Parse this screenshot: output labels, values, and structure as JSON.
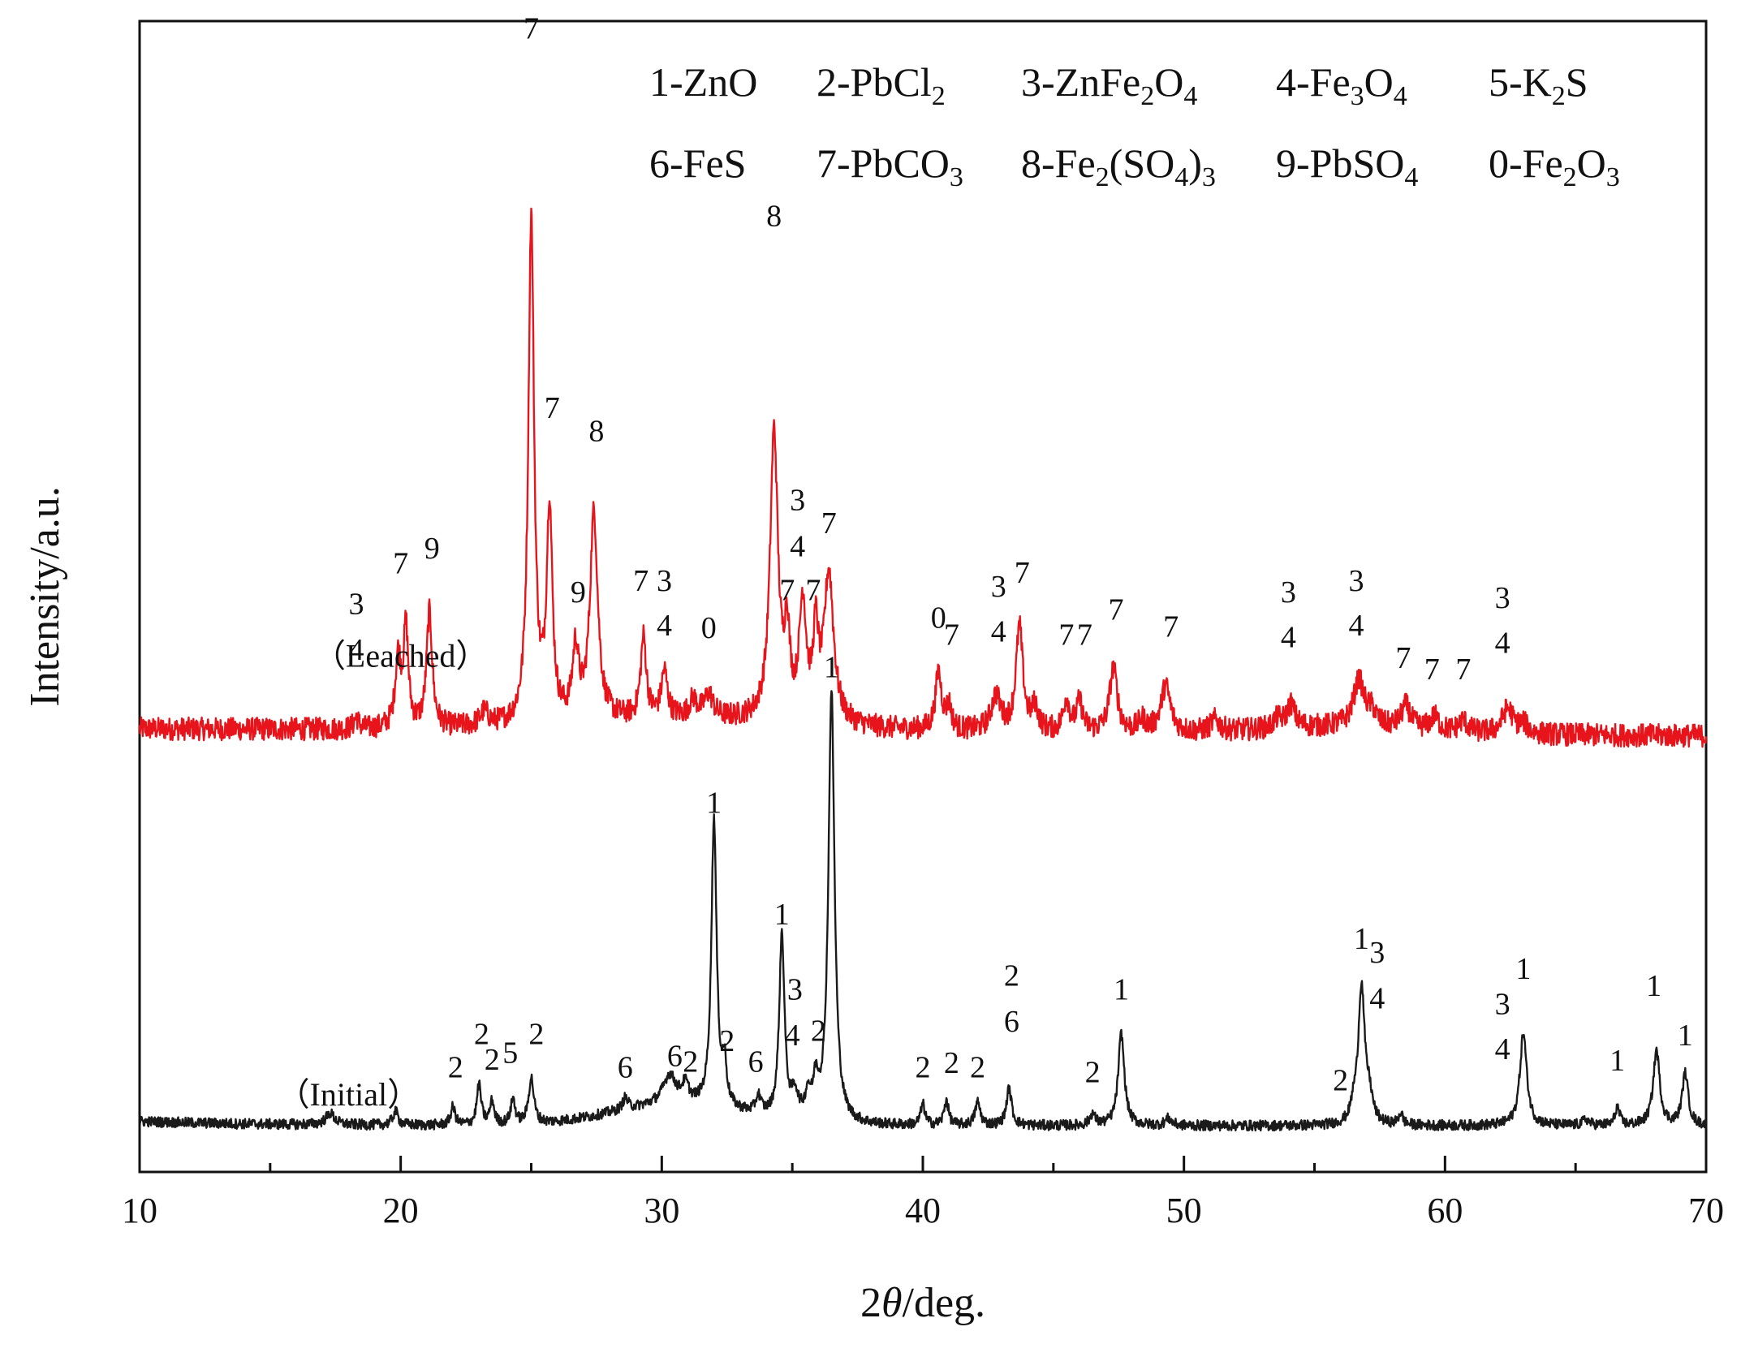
{
  "chart_data": {
    "type": "line",
    "xlabel": "2θ/deg.",
    "ylabel": "Intensity/a.u.",
    "xlim": [
      10,
      70
    ],
    "x_ticks": [
      10,
      20,
      30,
      40,
      50,
      60,
      70
    ],
    "grid": false,
    "legend_position": "top-right",
    "legend": [
      {
        "key": "1",
        "label": "ZnO",
        "parts": [
          [
            "1-ZnO",
            false
          ]
        ]
      },
      {
        "key": "2",
        "label": "PbCl2",
        "parts": [
          [
            "2-PbCl",
            false
          ],
          [
            "2",
            true
          ]
        ]
      },
      {
        "key": "3",
        "label": "ZnFe2O4",
        "parts": [
          [
            "3-ZnFe",
            false
          ],
          [
            "2",
            true
          ],
          [
            "O",
            false
          ],
          [
            "4",
            true
          ]
        ]
      },
      {
        "key": "4",
        "label": "Fe3O4",
        "parts": [
          [
            "4-Fe",
            false
          ],
          [
            "3",
            true
          ],
          [
            "O",
            false
          ],
          [
            "4",
            true
          ]
        ]
      },
      {
        "key": "5",
        "label": "K2S",
        "parts": [
          [
            "5-K",
            false
          ],
          [
            "2",
            true
          ],
          [
            "S",
            false
          ]
        ]
      },
      {
        "key": "6",
        "label": "FeS",
        "parts": [
          [
            "6-FeS",
            false
          ]
        ]
      },
      {
        "key": "7",
        "label": "PbCO3",
        "parts": [
          [
            "7-PbCO",
            false
          ],
          [
            "3",
            true
          ]
        ]
      },
      {
        "key": "8",
        "label": "Fe2(SO4)3",
        "parts": [
          [
            "8-Fe",
            false
          ],
          [
            "2",
            true
          ],
          [
            "(SO",
            false
          ],
          [
            "4",
            true
          ],
          [
            ")",
            false
          ],
          [
            "3",
            true
          ]
        ]
      },
      {
        "key": "9",
        "label": "PbSO4",
        "parts": [
          [
            "9-PbSO",
            false
          ],
          [
            "4",
            true
          ]
        ]
      },
      {
        "key": "0",
        "label": "Fe2O3",
        "parts": [
          [
            "0-Fe",
            false
          ],
          [
            "2",
            true
          ],
          [
            "O",
            false
          ],
          [
            "3",
            true
          ]
        ]
      }
    ],
    "series": [
      {
        "name": "（Leached）",
        "color": "#e8141b",
        "baseline": 0.385,
        "noise": 0.01,
        "peaks": [
          [
            18.3,
            0.01,
            0.1
          ],
          [
            19.9,
            0.06,
            0.13
          ],
          [
            20.2,
            0.085,
            0.11
          ],
          [
            21.1,
            0.1,
            0.13
          ],
          [
            23.2,
            0.012,
            0.2
          ],
          [
            25.0,
            0.44,
            0.13
          ],
          [
            25.7,
            0.185,
            0.13
          ],
          [
            26.7,
            0.06,
            0.14
          ],
          [
            27.4,
            0.18,
            0.18
          ],
          [
            29.3,
            0.07,
            0.13
          ],
          [
            30.1,
            0.04,
            0.14
          ],
          [
            31.2,
            0.015,
            0.18
          ],
          [
            31.8,
            0.02,
            0.2
          ],
          [
            34.3,
            0.25,
            0.18
          ],
          [
            34.8,
            0.07,
            0.12
          ],
          [
            35.4,
            0.1,
            0.16
          ],
          [
            35.9,
            0.07,
            0.12
          ],
          [
            36.4,
            0.13,
            0.22
          ],
          [
            40.6,
            0.05,
            0.14
          ],
          [
            41.0,
            0.02,
            0.12
          ],
          [
            42.8,
            0.03,
            0.22
          ],
          [
            43.7,
            0.09,
            0.16
          ],
          [
            44.3,
            0.02,
            0.14
          ],
          [
            45.5,
            0.028,
            0.14
          ],
          [
            46.0,
            0.025,
            0.14
          ],
          [
            47.3,
            0.055,
            0.18
          ],
          [
            48.4,
            0.01,
            0.16
          ],
          [
            49.3,
            0.04,
            0.22
          ],
          [
            51.2,
            0.01,
            0.2
          ],
          [
            53.6,
            0.008,
            0.2
          ],
          [
            54.1,
            0.02,
            0.18
          ],
          [
            56.7,
            0.04,
            0.25
          ],
          [
            57.2,
            0.012,
            0.2
          ],
          [
            58.5,
            0.02,
            0.22
          ],
          [
            59.6,
            0.012,
            0.2
          ],
          [
            60.7,
            0.01,
            0.2
          ],
          [
            62.4,
            0.022,
            0.25
          ],
          [
            63.0,
            0.008,
            0.2
          ]
        ],
        "labels": [
          [
            "3",
            18.3,
            0.485
          ],
          [
            "4",
            18.3,
            0.445
          ],
          [
            "7",
            20.0,
            0.52
          ],
          [
            "9",
            21.2,
            0.533
          ],
          [
            "7",
            25.0,
            0.985
          ],
          [
            "7",
            25.8,
            0.655
          ],
          [
            "9",
            26.8,
            0.495
          ],
          [
            "8",
            27.5,
            0.635
          ],
          [
            "7",
            29.2,
            0.505
          ],
          [
            "3",
            30.1,
            0.505
          ],
          [
            "4",
            30.1,
            0.466
          ],
          [
            "0",
            31.8,
            0.464
          ],
          [
            "8",
            34.3,
            0.822
          ],
          [
            "3",
            35.2,
            0.575
          ],
          [
            "4",
            35.2,
            0.535
          ],
          [
            "7",
            34.8,
            0.497
          ],
          [
            "7",
            35.8,
            0.497
          ],
          [
            "7",
            36.4,
            0.555
          ],
          [
            "0",
            40.6,
            0.473
          ],
          [
            "7",
            41.1,
            0.458
          ],
          [
            "3",
            42.9,
            0.5
          ],
          [
            "4",
            42.9,
            0.461
          ],
          [
            "7",
            43.8,
            0.512
          ],
          [
            "7",
            45.5,
            0.458
          ],
          [
            "7",
            46.2,
            0.458
          ],
          [
            "7",
            47.4,
            0.48
          ],
          [
            "7",
            49.5,
            0.465
          ],
          [
            "3",
            54.0,
            0.495
          ],
          [
            "4",
            54.0,
            0.456
          ],
          [
            "3",
            56.6,
            0.505
          ],
          [
            "4",
            56.6,
            0.466
          ],
          [
            "7",
            58.4,
            0.438
          ],
          [
            "7",
            59.5,
            0.428
          ],
          [
            "7",
            60.7,
            0.428
          ],
          [
            "3",
            62.2,
            0.49
          ],
          [
            "4",
            62.2,
            0.451
          ]
        ]
      },
      {
        "name": "（Initial）",
        "color": "#1a1a1a",
        "baseline": 0.04,
        "noise": 0.0045,
        "peaks": [
          [
            17.3,
            0.01,
            0.2
          ],
          [
            19.8,
            0.012,
            0.12
          ],
          [
            22.0,
            0.016,
            0.1
          ],
          [
            23.0,
            0.035,
            0.1
          ],
          [
            23.5,
            0.02,
            0.1
          ],
          [
            24.3,
            0.022,
            0.1
          ],
          [
            25.0,
            0.04,
            0.12
          ],
          [
            28.6,
            0.01,
            0.12
          ],
          [
            30.3,
            0.025,
            0.3
          ],
          [
            30.9,
            0.015,
            0.15
          ],
          [
            32.0,
            0.25,
            0.12
          ],
          [
            32.4,
            0.035,
            0.1
          ],
          [
            33.7,
            0.015,
            0.12
          ],
          [
            34.6,
            0.16,
            0.12
          ],
          [
            35.1,
            0.02,
            0.15
          ],
          [
            35.6,
            0.02,
            0.12
          ],
          [
            35.9,
            0.03,
            0.12
          ],
          [
            36.5,
            0.375,
            0.14
          ],
          [
            40.0,
            0.018,
            0.1
          ],
          [
            40.9,
            0.022,
            0.1
          ],
          [
            42.1,
            0.02,
            0.12
          ],
          [
            43.3,
            0.032,
            0.12
          ],
          [
            46.5,
            0.01,
            0.12
          ],
          [
            47.6,
            0.08,
            0.14
          ],
          [
            49.4,
            0.006,
            0.15
          ],
          [
            56.5,
            0.012,
            0.12
          ],
          [
            56.8,
            0.12,
            0.15
          ],
          [
            57.1,
            0.02,
            0.15
          ],
          [
            58.3,
            0.01,
            0.1
          ],
          [
            63.0,
            0.08,
            0.16
          ],
          [
            65.4,
            0.005,
            0.15
          ],
          [
            66.6,
            0.016,
            0.1
          ],
          [
            68.1,
            0.065,
            0.15
          ],
          [
            69.2,
            0.045,
            0.14
          ]
        ],
        "labels": [
          [
            "2",
            22.1,
            0.082
          ],
          [
            "2",
            23.1,
            0.111
          ],
          [
            "2",
            23.5,
            0.089
          ],
          [
            "5",
            24.2,
            0.095
          ],
          [
            "2",
            25.2,
            0.111
          ],
          [
            "6",
            28.6,
            0.082
          ],
          [
            "6",
            30.5,
            0.092
          ],
          [
            "2",
            31.1,
            0.087
          ],
          [
            "1",
            32.0,
            0.312
          ],
          [
            "2",
            32.5,
            0.105
          ],
          [
            "6",
            33.6,
            0.087
          ],
          [
            "1",
            34.6,
            0.215
          ],
          [
            "3",
            35.1,
            0.15
          ],
          [
            "4",
            35.0,
            0.11
          ],
          [
            "2",
            36.0,
            0.114
          ],
          [
            "1",
            36.5,
            0.43
          ],
          [
            "2",
            40.0,
            0.082
          ],
          [
            "2",
            41.1,
            0.086
          ],
          [
            "2",
            42.1,
            0.082
          ],
          [
            "2",
            43.4,
            0.162
          ],
          [
            "6",
            43.4,
            0.122
          ],
          [
            "2",
            46.5,
            0.078
          ],
          [
            "1",
            47.6,
            0.15
          ],
          [
            "2",
            56.0,
            0.071
          ],
          [
            "1",
            56.8,
            0.194
          ],
          [
            "3",
            57.4,
            0.182
          ],
          [
            "4",
            57.4,
            0.142
          ],
          [
            "3",
            62.2,
            0.137
          ],
          [
            "4",
            62.2,
            0.098
          ],
          [
            "1",
            63.0,
            0.168
          ],
          [
            "1",
            66.6,
            0.088
          ],
          [
            "1",
            68.0,
            0.153
          ],
          [
            "1",
            69.2,
            0.11
          ]
        ]
      }
    ]
  }
}
